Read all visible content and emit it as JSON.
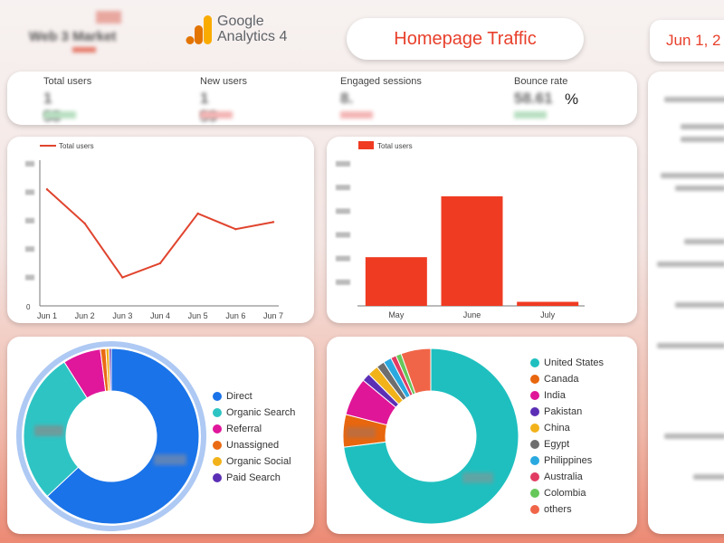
{
  "header": {
    "brand_name": "Web 3 Market",
    "ga_logo_text_line1": "Google",
    "ga_logo_text_line2": "Analytics 4",
    "report_title": "Homepage Traffic",
    "date_range": "Jun 1, 2"
  },
  "kpis": [
    {
      "label": "Total users",
      "value": "1 58"
    },
    {
      "label": "New users",
      "value": "1 59"
    },
    {
      "label": "Engaged sessions",
      "value": "8."
    },
    {
      "label": "Bounce rate",
      "value": "58.61",
      "unit": "%"
    }
  ],
  "colors": {
    "accent": "#e8402c",
    "bar": "#ef3b22",
    "line": "#e0442e"
  },
  "chart_data": [
    {
      "type": "line",
      "legend": [
        "Total users"
      ],
      "categories": [
        "Jun 1",
        "Jun 2",
        "Jun 3",
        "Jun 4",
        "Jun 5",
        "Jun 6",
        "Jun 7"
      ],
      "series": [
        {
          "name": "Total users",
          "values": [
            82,
            58,
            20,
            30,
            65,
            54,
            59
          ]
        }
      ],
      "y_first_tick": "0",
      "ylim": [
        0,
        100
      ]
    },
    {
      "type": "bar",
      "legend": [
        "Total users"
      ],
      "categories": [
        "May",
        "June",
        "July"
      ],
      "series": [
        {
          "name": "Total users",
          "values": [
            48,
            108,
            4
          ]
        }
      ],
      "ylim": [
        0,
        140
      ]
    },
    {
      "type": "pie",
      "legend": [
        "Direct",
        "Organic Search",
        "Referral",
        "Unassigned",
        "Organic Social",
        "Paid Search"
      ],
      "values": [
        63,
        28,
        7,
        1,
        0.6,
        0.4
      ],
      "colors": [
        "#1a73e8",
        "#2ec4c4",
        "#e0169b",
        "#ea6a14",
        "#f2b21a",
        "#5b2fb5"
      ]
    },
    {
      "type": "pie",
      "legend": [
        "United States",
        "Canada",
        "India",
        "Pakistan",
        "China",
        "Egypt",
        "Philippines",
        "Australia",
        "Colombia",
        "others"
      ],
      "values": [
        73,
        6,
        7,
        1.5,
        2,
        1.5,
        1.5,
        1,
        1,
        5.5
      ],
      "colors": [
        "#1fbfbf",
        "#e8660d",
        "#df1697",
        "#5b2fb5",
        "#f2b21a",
        "#6e6e6e",
        "#2aa9e0",
        "#e23c62",
        "#66c75a",
        "#f06548"
      ]
    }
  ]
}
